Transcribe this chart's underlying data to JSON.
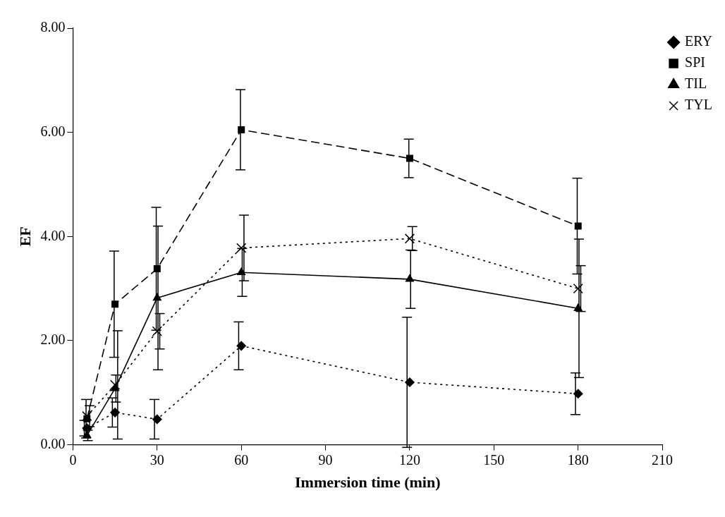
{
  "chart_data": {
    "type": "line",
    "xlabel": "Immersion time (min)",
    "ylabel": "EF",
    "x": [
      5,
      15,
      30,
      60,
      120,
      180
    ],
    "xlim": [
      0,
      210
    ],
    "xticks": [
      0,
      30,
      60,
      90,
      120,
      150,
      180,
      210
    ],
    "ylim": [
      0,
      8
    ],
    "yticks": [
      {
        "value": 0,
        "label": "0.00"
      },
      {
        "value": 2,
        "label": "2.00"
      },
      {
        "value": 4,
        "label": "4.00"
      },
      {
        "value": 6,
        "label": "6.00"
      },
      {
        "value": 8,
        "label": "8.00"
      }
    ],
    "grid": false,
    "legend": "top right",
    "series": [
      {
        "name": "ERY",
        "color": "#000000",
        "marker": "diamond",
        "line_style": "dotted",
        "values": [
          0.32,
          0.62,
          0.49,
          1.9,
          1.2,
          0.98
        ],
        "errors": [
          0.15,
          0.28,
          0.38,
          0.46,
          1.25,
          0.4
        ]
      },
      {
        "name": "SPI",
        "color": "#000000",
        "marker": "square",
        "line_style": "dashed",
        "values": [
          0.5,
          2.7,
          3.38,
          6.05,
          5.5,
          4.2
        ],
        "errors": [
          0.37,
          1.02,
          1.18,
          0.77,
          0.37,
          0.92
        ]
      },
      {
        "name": "TIL",
        "color": "#000000",
        "marker": "triangle",
        "line_style": "solid",
        "values": [
          0.18,
          1.08,
          2.82,
          3.31,
          3.18,
          2.62
        ],
        "errors": [
          0.1,
          0.26,
          1.38,
          0.46,
          0.56,
          1.33
        ]
      },
      {
        "name": "TYL",
        "color": "#000000",
        "marker": "cross",
        "line_style": "dotted",
        "values": [
          0.55,
          1.15,
          2.18,
          3.78,
          3.96,
          3.0
        ],
        "errors": [
          0.2,
          1.04,
          0.34,
          0.63,
          0.23,
          0.44
        ]
      }
    ]
  }
}
